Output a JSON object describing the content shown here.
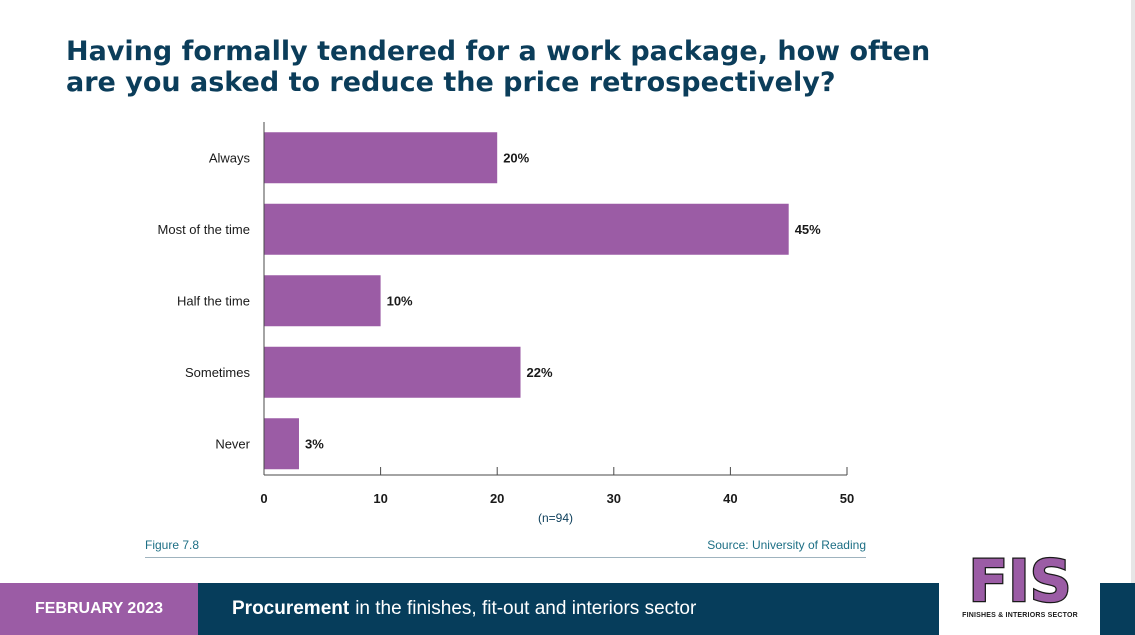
{
  "title": {
    "line1": "Having formally tendered for a work package, how often",
    "line2": "are you asked to reduce the price retrospectively?"
  },
  "chart_data": {
    "type": "bar",
    "orientation": "horizontal",
    "categories": [
      "Always",
      "Most of the time",
      "Half the time",
      "Sometimes",
      "Never"
    ],
    "values": [
      20,
      45,
      10,
      22,
      3
    ],
    "value_labels": [
      "20%",
      "45%",
      "10%",
      "22%",
      "3%"
    ],
    "xlim": [
      0,
      50
    ],
    "xticks": [
      0,
      10,
      20,
      30,
      40,
      50
    ],
    "xlabel": "(n=94)",
    "bar_color": "#9b5ca5",
    "grid": false
  },
  "figure": {
    "label": "Figure 7.8",
    "source": "Source: University of Reading"
  },
  "footer": {
    "date": "FEBRUARY 2023",
    "subject_bold": "Procurement",
    "subject_rest": "in the finishes, fit-out and interiors sector"
  },
  "logo": {
    "text": "FIS",
    "subtitle": "FINISHES & INTERIORS SECTOR"
  },
  "colors": {
    "title": "#0b3d5a",
    "accent": "#9b5ca5",
    "navy": "#063d5b"
  }
}
